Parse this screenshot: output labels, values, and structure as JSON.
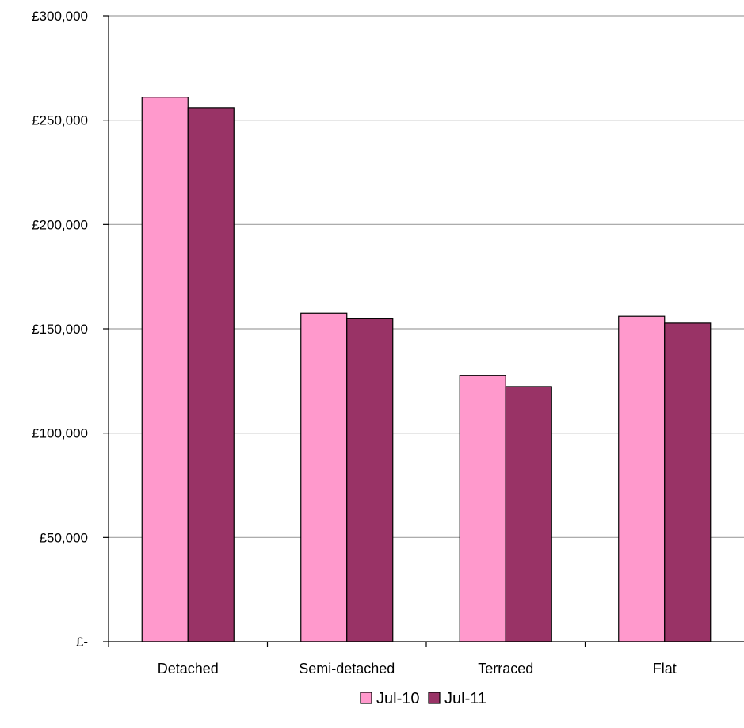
{
  "chart_data": {
    "type": "bar",
    "title": "",
    "xlabel": "",
    "ylabel": "",
    "categories": [
      "Detached",
      "Semi-detached",
      "Terraced",
      "Flat"
    ],
    "series": [
      {
        "name": "Jul-10",
        "color": "#ff99cc",
        "values": [
          261000,
          157500,
          127500,
          156000
        ]
      },
      {
        "name": "Jul-11",
        "color": "#993366",
        "values": [
          256000,
          154800,
          122300,
          152700
        ]
      }
    ],
    "ylim": [
      0,
      300000
    ],
    "yticks": [
      0,
      50000,
      100000,
      150000,
      200000,
      250000,
      300000
    ],
    "ytick_labels": [
      "£-",
      "£50,000",
      "£100,000",
      "£150,000",
      "£200,000",
      "£250,000",
      "£300,000"
    ],
    "grid": true,
    "legend_position": "bottom",
    "gridline_color": "#a0a0a0",
    "bar_outline_color": "#000000"
  }
}
